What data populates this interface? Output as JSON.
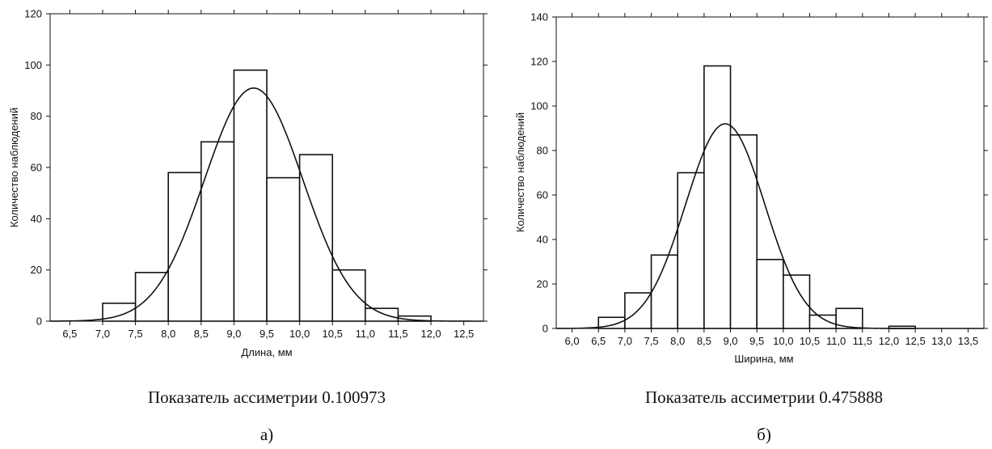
{
  "chart_data": [
    {
      "type": "bar",
      "title": "",
      "xlabel": "Длина, мм",
      "ylabel": "Количество наблюдений",
      "x_ticks": [
        "6,5",
        "7,0",
        "7,5",
        "8,0",
        "8,5",
        "9,0",
        "9,5",
        "10,0",
        "10,5",
        "11,0",
        "11,5",
        "12,0",
        "12,5"
      ],
      "x_tick_values": [
        6.5,
        7.0,
        7.5,
        8.0,
        8.5,
        9.0,
        9.5,
        10.0,
        10.5,
        11.0,
        11.5,
        12.0,
        12.5
      ],
      "xlim": [
        6.2,
        12.8
      ],
      "ylim": [
        0,
        120
      ],
      "y_ticks": [
        "0",
        "20",
        "40",
        "60",
        "80",
        "100",
        "120"
      ],
      "y_tick_values": [
        0,
        20,
        40,
        60,
        80,
        100,
        120
      ],
      "bins": [
        [
          7.0,
          7.5
        ],
        [
          7.5,
          8.0
        ],
        [
          8.0,
          8.5
        ],
        [
          8.5,
          9.0
        ],
        [
          9.0,
          9.5
        ],
        [
          9.5,
          10.0
        ],
        [
          10.0,
          10.5
        ],
        [
          10.5,
          11.0
        ],
        [
          11.0,
          11.5
        ],
        [
          11.5,
          12.0
        ]
      ],
      "values": [
        7,
        19,
        58,
        70,
        98,
        56,
        65,
        20,
        5,
        2
      ],
      "normal_curve": {
        "mean": 9.3,
        "sd": 0.75,
        "peak": 91
      },
      "grid": false,
      "caption": "Показатель ассиметрии 0.100973",
      "label": "а)"
    },
    {
      "type": "bar",
      "title": "",
      "xlabel": "Ширина, мм",
      "ylabel": "Количество наблюдений",
      "x_ticks": [
        "6,0",
        "6,5",
        "7,0",
        "7,5",
        "8,0",
        "8,5",
        "9,0",
        "9,5",
        "10,0",
        "10,5",
        "11,0",
        "11,5",
        "12,0",
        "12,5",
        "13,0",
        "13,5"
      ],
      "x_tick_values": [
        6.0,
        6.5,
        7.0,
        7.5,
        8.0,
        8.5,
        9.0,
        9.5,
        10.0,
        10.5,
        11.0,
        11.5,
        12.0,
        12.5,
        13.0,
        13.5
      ],
      "xlim": [
        5.7,
        13.8
      ],
      "ylim": [
        0,
        140
      ],
      "y_ticks": [
        "0",
        "20",
        "40",
        "60",
        "80",
        "100",
        "120",
        "140"
      ],
      "y_tick_values": [
        0,
        20,
        40,
        60,
        80,
        100,
        120,
        140
      ],
      "bins": [
        [
          6.5,
          7.0
        ],
        [
          7.0,
          7.5
        ],
        [
          7.5,
          8.0
        ],
        [
          8.0,
          8.5
        ],
        [
          8.5,
          9.0
        ],
        [
          9.0,
          9.5
        ],
        [
          9.5,
          10.0
        ],
        [
          10.0,
          10.5
        ],
        [
          10.5,
          11.0
        ],
        [
          11.0,
          11.5
        ],
        [
          12.0,
          12.5
        ]
      ],
      "values": [
        5,
        16,
        33,
        70,
        118,
        87,
        31,
        24,
        6,
        9,
        1
      ],
      "normal_curve": {
        "mean": 8.9,
        "sd": 0.75,
        "peak": 92
      },
      "grid": false,
      "caption": "Показатель ассиметрии 0.475888",
      "label": "б)"
    }
  ]
}
